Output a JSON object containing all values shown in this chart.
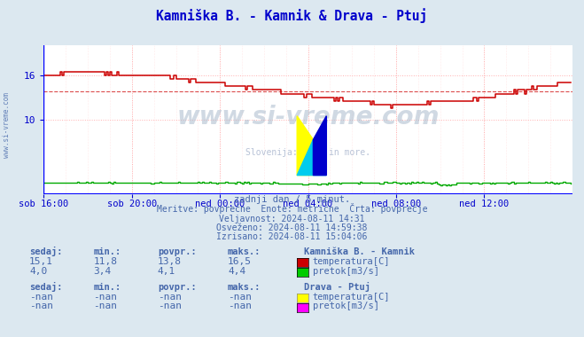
{
  "title": "Kamniška B. - Kamnik & Drava - Ptuj",
  "bg_color": "#dce8f0",
  "plot_bg_color": "#ffffff",
  "grid_color": "#ffb0b0",
  "axis_color": "#0000cc",
  "title_color": "#0000cc",
  "text_color": "#4466aa",
  "xlim": [
    0,
    288
  ],
  "ylim": [
    0,
    20
  ],
  "yticks": [
    10,
    16
  ],
  "xtick_labels": [
    "sob 16:00",
    "sob 20:00",
    "ned 00:00",
    "ned 04:00",
    "ned 08:00",
    "ned 12:00"
  ],
  "xtick_positions": [
    0,
    48,
    96,
    144,
    192,
    240
  ],
  "watermark_main": "www.si-vreme.com",
  "watermark_sub": "Slovenija: reke in more.",
  "subtitle1": "zadnji dan / 5 minut.",
  "subtitle2": "Meritve: povprečne  Enote: metrične  Črta: povprečje",
  "subtitle3": "Veljavnost: 2024-08-11 14:31",
  "subtitle4": "Osveženo: 2024-08-11 14:59:38",
  "subtitle5": "Izrisano: 2024-08-11 15:04:06",
  "red_line_color": "#cc0000",
  "green_line_color": "#00aa00",
  "blue_line_color": "#0000ff",
  "avg_line_value": 13.8,
  "legend_kamnik_color_temp": "#cc0000",
  "legend_kamnik_color_flow": "#00cc00",
  "legend_ptuj_color_temp": "#ffff00",
  "legend_ptuj_color_flow": "#ff00ff"
}
